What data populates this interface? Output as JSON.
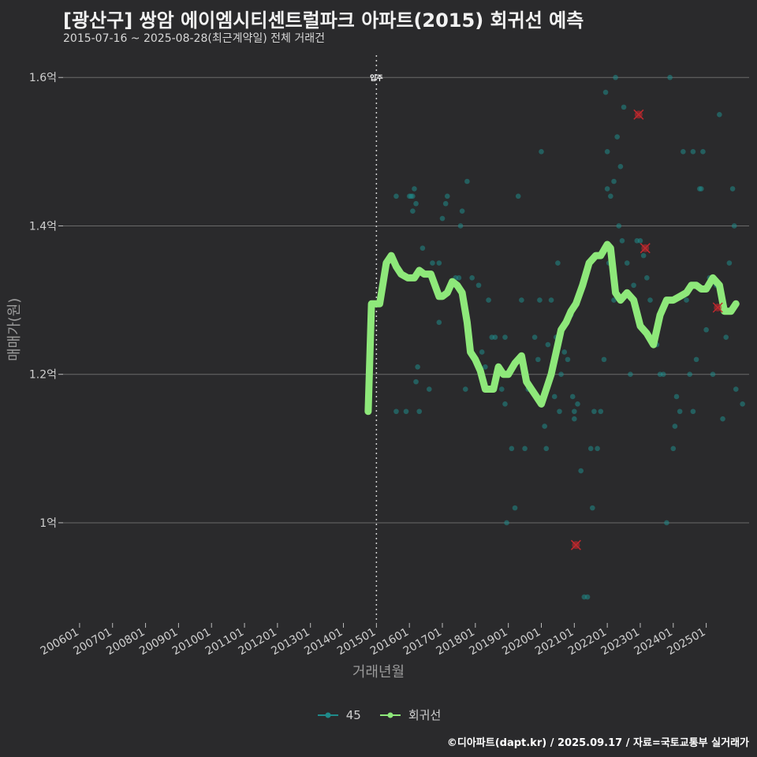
{
  "title": "[광산구] 쌍암 에이엠시티센트럴파크 아파트(2015) 회귀선 예측",
  "subtitle": "2015-07-16 ~ 2025-08-28(최근계약일) 전체 거래건",
  "footer": "©디아파트(dapt.kr) / 2025.09.17 / 자료=국토교통부 실거래가",
  "colors": {
    "background": "#2a2a2c",
    "points": "#1f8a8a",
    "regression": "#8ee87a",
    "outlier": "#c0282d",
    "grid": "#6a6a6a"
  },
  "chart_data": {
    "type": "scatter",
    "xlabel": "거래년월",
    "ylabel": "매매가(원)",
    "x_ticks": [
      "200601",
      "200701",
      "200801",
      "200901",
      "201001",
      "201101",
      "201201",
      "201301",
      "201401",
      "201501",
      "201601",
      "201701",
      "201801",
      "201901",
      "202001",
      "202101",
      "202201",
      "202301",
      "202401",
      "202501"
    ],
    "y_ticks": [
      {
        "value": 1.0,
        "label": "1억"
      },
      {
        "value": 1.2,
        "label": "1.2억"
      },
      {
        "value": 1.4,
        "label": "1.4억"
      },
      {
        "value": 1.6,
        "label": "1.6억"
      }
    ],
    "ylim": [
      0.865,
      1.63
    ],
    "xlim": [
      2005.5,
      2026.3
    ],
    "grid": true,
    "vline": {
      "x": 2015.0,
      "label": "입주"
    },
    "legend": {
      "position": "bottom",
      "items": [
        {
          "name": "45",
          "type": "points"
        },
        {
          "name": "회귀선",
          "type": "line"
        }
      ]
    },
    "series": [
      {
        "name": "45",
        "points": [
          [
            2015.6,
            1.15
          ],
          [
            2015.6,
            1.44
          ],
          [
            2015.9,
            1.15
          ],
          [
            2016.0,
            1.44
          ],
          [
            2016.05,
            1.44
          ],
          [
            2016.1,
            1.44
          ],
          [
            2016.1,
            1.42
          ],
          [
            2016.15,
            1.45
          ],
          [
            2016.2,
            1.43
          ],
          [
            2016.2,
            1.19
          ],
          [
            2016.25,
            1.21
          ],
          [
            2016.3,
            1.15
          ],
          [
            2016.4,
            1.37
          ],
          [
            2016.6,
            1.18
          ],
          [
            2016.7,
            1.35
          ],
          [
            2016.9,
            1.35
          ],
          [
            2016.9,
            1.27
          ],
          [
            2017.0,
            1.41
          ],
          [
            2017.1,
            1.43
          ],
          [
            2017.15,
            1.44
          ],
          [
            2017.3,
            1.32
          ],
          [
            2017.4,
            1.33
          ],
          [
            2017.5,
            1.33
          ],
          [
            2017.55,
            1.4
          ],
          [
            2017.6,
            1.42
          ],
          [
            2017.7,
            1.18
          ],
          [
            2017.75,
            1.46
          ],
          [
            2017.9,
            1.33
          ],
          [
            2018.1,
            1.32
          ],
          [
            2018.2,
            1.23
          ],
          [
            2018.3,
            1.21
          ],
          [
            2018.4,
            1.3
          ],
          [
            2018.5,
            1.25
          ],
          [
            2018.6,
            1.25
          ],
          [
            2018.7,
            1.21
          ],
          [
            2018.8,
            1.18
          ],
          [
            2018.9,
            1.25
          ],
          [
            2018.9,
            1.16
          ],
          [
            2018.95,
            1.0
          ],
          [
            2019.1,
            1.1
          ],
          [
            2019.2,
            1.02
          ],
          [
            2019.3,
            1.44
          ],
          [
            2019.4,
            1.3
          ],
          [
            2019.5,
            1.1
          ],
          [
            2019.6,
            1.18
          ],
          [
            2019.8,
            1.25
          ],
          [
            2019.9,
            1.22
          ],
          [
            2019.95,
            1.3
          ],
          [
            2020.0,
            1.5
          ],
          [
            2020.1,
            1.13
          ],
          [
            2020.15,
            1.1
          ],
          [
            2020.2,
            1.24
          ],
          [
            2020.3,
            1.3
          ],
          [
            2020.4,
            1.17
          ],
          [
            2020.45,
            1.25
          ],
          [
            2020.5,
            1.35
          ],
          [
            2020.55,
            1.15
          ],
          [
            2020.6,
            1.2
          ],
          [
            2020.7,
            1.23
          ],
          [
            2020.8,
            1.22
          ],
          [
            2020.9,
            1.28
          ],
          [
            2020.95,
            1.17
          ],
          [
            2021.0,
            1.15
          ],
          [
            2021.0,
            1.14
          ],
          [
            2021.1,
            1.16
          ],
          [
            2021.2,
            1.07
          ],
          [
            2021.3,
            0.9
          ],
          [
            2021.4,
            0.9
          ],
          [
            2021.5,
            1.1
          ],
          [
            2021.55,
            1.02
          ],
          [
            2021.6,
            1.15
          ],
          [
            2021.7,
            1.1
          ],
          [
            2021.8,
            1.15
          ],
          [
            2021.9,
            1.22
          ],
          [
            2021.95,
            1.58
          ],
          [
            2022.0,
            1.45
          ],
          [
            2022.0,
            1.5
          ],
          [
            2022.05,
            1.35
          ],
          [
            2022.1,
            1.44
          ],
          [
            2022.15,
            1.35
          ],
          [
            2022.2,
            1.3
          ],
          [
            2022.2,
            1.46
          ],
          [
            2022.25,
            1.6
          ],
          [
            2022.3,
            1.52
          ],
          [
            2022.35,
            1.4
          ],
          [
            2022.4,
            1.48
          ],
          [
            2022.45,
            1.38
          ],
          [
            2022.5,
            1.56
          ],
          [
            2022.6,
            1.35
          ],
          [
            2022.7,
            1.2
          ],
          [
            2022.8,
            1.32
          ],
          [
            2022.9,
            1.38
          ],
          [
            2023.0,
            1.38
          ],
          [
            2023.1,
            1.36
          ],
          [
            2023.2,
            1.33
          ],
          [
            2023.3,
            1.3
          ],
          [
            2023.4,
            1.25
          ],
          [
            2023.5,
            1.24
          ],
          [
            2023.6,
            1.2
          ],
          [
            2023.7,
            1.2
          ],
          [
            2023.8,
            1.0
          ],
          [
            2023.9,
            1.6
          ],
          [
            2024.0,
            1.1
          ],
          [
            2024.05,
            1.13
          ],
          [
            2024.1,
            1.17
          ],
          [
            2024.2,
            1.15
          ],
          [
            2024.3,
            1.5
          ],
          [
            2024.4,
            1.3
          ],
          [
            2024.5,
            1.2
          ],
          [
            2024.6,
            1.15
          ],
          [
            2024.6,
            1.5
          ],
          [
            2024.7,
            1.22
          ],
          [
            2024.8,
            1.45
          ],
          [
            2024.85,
            1.45
          ],
          [
            2024.9,
            1.5
          ],
          [
            2025.0,
            1.26
          ],
          [
            2025.1,
            1.33
          ],
          [
            2025.2,
            1.2
          ],
          [
            2025.3,
            1.32
          ],
          [
            2025.4,
            1.55
          ],
          [
            2025.5,
            1.14
          ],
          [
            2025.6,
            1.25
          ],
          [
            2025.7,
            1.35
          ],
          [
            2025.8,
            1.45
          ],
          [
            2025.85,
            1.4
          ],
          [
            2025.9,
            1.18
          ],
          [
            2026.1,
            1.16
          ]
        ]
      },
      {
        "name": "회귀선",
        "points": [
          [
            2014.75,
            1.15
          ],
          [
            2014.85,
            1.295
          ],
          [
            2015.1,
            1.295
          ],
          [
            2015.3,
            1.35
          ],
          [
            2015.45,
            1.36
          ],
          [
            2015.6,
            1.345
          ],
          [
            2015.75,
            1.335
          ],
          [
            2015.95,
            1.33
          ],
          [
            2016.15,
            1.33
          ],
          [
            2016.3,
            1.34
          ],
          [
            2016.45,
            1.335
          ],
          [
            2016.65,
            1.335
          ],
          [
            2016.9,
            1.305
          ],
          [
            2017.0,
            1.305
          ],
          [
            2017.15,
            1.31
          ],
          [
            2017.3,
            1.325
          ],
          [
            2017.45,
            1.32
          ],
          [
            2017.6,
            1.31
          ],
          [
            2017.75,
            1.27
          ],
          [
            2017.85,
            1.23
          ],
          [
            2018.0,
            1.22
          ],
          [
            2018.15,
            1.205
          ],
          [
            2018.3,
            1.18
          ],
          [
            2018.55,
            1.18
          ],
          [
            2018.7,
            1.21
          ],
          [
            2018.85,
            1.2
          ],
          [
            2019.0,
            1.2
          ],
          [
            2019.2,
            1.215
          ],
          [
            2019.4,
            1.225
          ],
          [
            2019.55,
            1.19
          ],
          [
            2019.7,
            1.18
          ],
          [
            2019.85,
            1.17
          ],
          [
            2020.0,
            1.16
          ],
          [
            2020.15,
            1.18
          ],
          [
            2020.3,
            1.2
          ],
          [
            2020.5,
            1.24
          ],
          [
            2020.6,
            1.26
          ],
          [
            2020.75,
            1.27
          ],
          [
            2020.9,
            1.285
          ],
          [
            2021.05,
            1.295
          ],
          [
            2021.25,
            1.32
          ],
          [
            2021.45,
            1.35
          ],
          [
            2021.65,
            1.36
          ],
          [
            2021.8,
            1.36
          ],
          [
            2022.0,
            1.375
          ],
          [
            2022.1,
            1.37
          ],
          [
            2022.25,
            1.31
          ],
          [
            2022.4,
            1.3
          ],
          [
            2022.6,
            1.31
          ],
          [
            2022.8,
            1.3
          ],
          [
            2023.0,
            1.265
          ],
          [
            2023.2,
            1.255
          ],
          [
            2023.4,
            1.24
          ],
          [
            2023.6,
            1.28
          ],
          [
            2023.8,
            1.3
          ],
          [
            2024.0,
            1.3
          ],
          [
            2024.2,
            1.305
          ],
          [
            2024.4,
            1.31
          ],
          [
            2024.55,
            1.32
          ],
          [
            2024.7,
            1.32
          ],
          [
            2024.85,
            1.315
          ],
          [
            2025.0,
            1.315
          ],
          [
            2025.2,
            1.33
          ],
          [
            2025.4,
            1.32
          ],
          [
            2025.55,
            1.285
          ],
          [
            2025.75,
            1.285
          ],
          [
            2025.9,
            1.295
          ]
        ]
      }
    ],
    "outliers": [
      [
        2022.95,
        1.55
      ],
      [
        2021.05,
        0.97
      ],
      [
        2025.35,
        1.29
      ],
      [
        2023.15,
        1.37
      ]
    ]
  }
}
